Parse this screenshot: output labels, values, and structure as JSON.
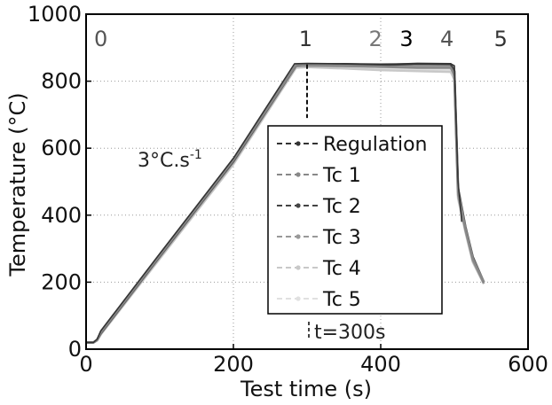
{
  "chart_data": {
    "type": "line",
    "xlabel": "Test time (s)",
    "ylabel": "Temperature (°C)",
    "xlim": [
      0,
      600
    ],
    "ylim": [
      0,
      1000
    ],
    "xticks": [
      "0",
      "200",
      "400",
      "600"
    ],
    "yticks": [
      "0",
      "200",
      "400",
      "600",
      "800",
      "1000"
    ],
    "grid": "dotted (x and y)",
    "legend": "center-right",
    "stage_labels": [
      {
        "text": "0",
        "x": 20,
        "color": "#555555"
      },
      {
        "text": "1",
        "x": 298,
        "color": "#333333"
      },
      {
        "text": "2",
        "x": 393,
        "color": "#777777"
      },
      {
        "text": "3",
        "x": 435,
        "color": "#000000"
      },
      {
        "text": "4",
        "x": 490,
        "color": "#555555"
      },
      {
        "text": "5",
        "x": 563,
        "color": "#333333"
      }
    ],
    "annotations": {
      "rate_text": "3°C.s",
      "rate_exponent": "-1",
      "time_marker": {
        "x": 300,
        "y_top": 850,
        "y_bottom": 690
      },
      "time_label": "t=300s"
    },
    "series": [
      {
        "name": "Regulation",
        "color": "#333333",
        "dash": "6,4",
        "x": [
          0,
          10,
          15,
          20,
          100,
          200,
          283,
          300,
          350,
          400,
          450,
          495,
          500,
          505,
          510
        ],
        "y": [
          20,
          20,
          30,
          55,
          285,
          570,
          852,
          853,
          852,
          851,
          852,
          852,
          846,
          500,
          380
        ]
      },
      {
        "name": "Tc 1",
        "color": "#888888",
        "dash": "6,4",
        "x": [
          0,
          10,
          15,
          20,
          100,
          200,
          285,
          300,
          350,
          400,
          450,
          495,
          500,
          505,
          515,
          525,
          540
        ],
        "y": [
          20,
          20,
          28,
          50,
          280,
          565,
          848,
          849,
          846,
          843,
          840,
          840,
          820,
          470,
          360,
          270,
          200
        ]
      },
      {
        "name": "Tc 2",
        "color": "#444444",
        "dash": "6,4",
        "x": [
          0,
          10,
          15,
          20,
          100,
          200,
          285,
          300,
          350,
          400,
          450,
          495,
          500,
          505,
          515,
          525,
          540
        ],
        "y": [
          20,
          20,
          28,
          48,
          278,
          562,
          847,
          850,
          851,
          848,
          852,
          851,
          830,
          480,
          365,
          275,
          200
        ]
      },
      {
        "name": "Tc 3",
        "color": "#999999",
        "dash": "6,4",
        "x": [
          0,
          10,
          15,
          20,
          100,
          200,
          285,
          300,
          350,
          400,
          450,
          495,
          500,
          505,
          515,
          525,
          540
        ],
        "y": [
          20,
          20,
          27,
          46,
          275,
          558,
          845,
          846,
          845,
          843,
          845,
          846,
          815,
          460,
          355,
          265,
          196
        ]
      },
      {
        "name": "Tc 4",
        "color": "#c8c8c8",
        "dash": "6,4",
        "x": [
          0,
          10,
          15,
          20,
          100,
          200,
          285,
          300,
          350,
          400,
          450,
          495,
          500,
          505,
          515,
          525,
          540
        ],
        "y": [
          20,
          20,
          26,
          44,
          270,
          552,
          840,
          842,
          838,
          833,
          830,
          828,
          805,
          450,
          350,
          260,
          195
        ]
      },
      {
        "name": "Tc 5",
        "color": "#e0e0e0",
        "dash": "6,4",
        "x": [
          0,
          10,
          15,
          20,
          100,
          200,
          285,
          300,
          350,
          400,
          450,
          495,
          500,
          505,
          515,
          525,
          540
        ],
        "y": [
          20,
          20,
          26,
          45,
          272,
          555,
          843,
          844,
          842,
          838,
          836,
          834,
          810,
          455,
          352,
          262,
          195
        ]
      }
    ]
  }
}
